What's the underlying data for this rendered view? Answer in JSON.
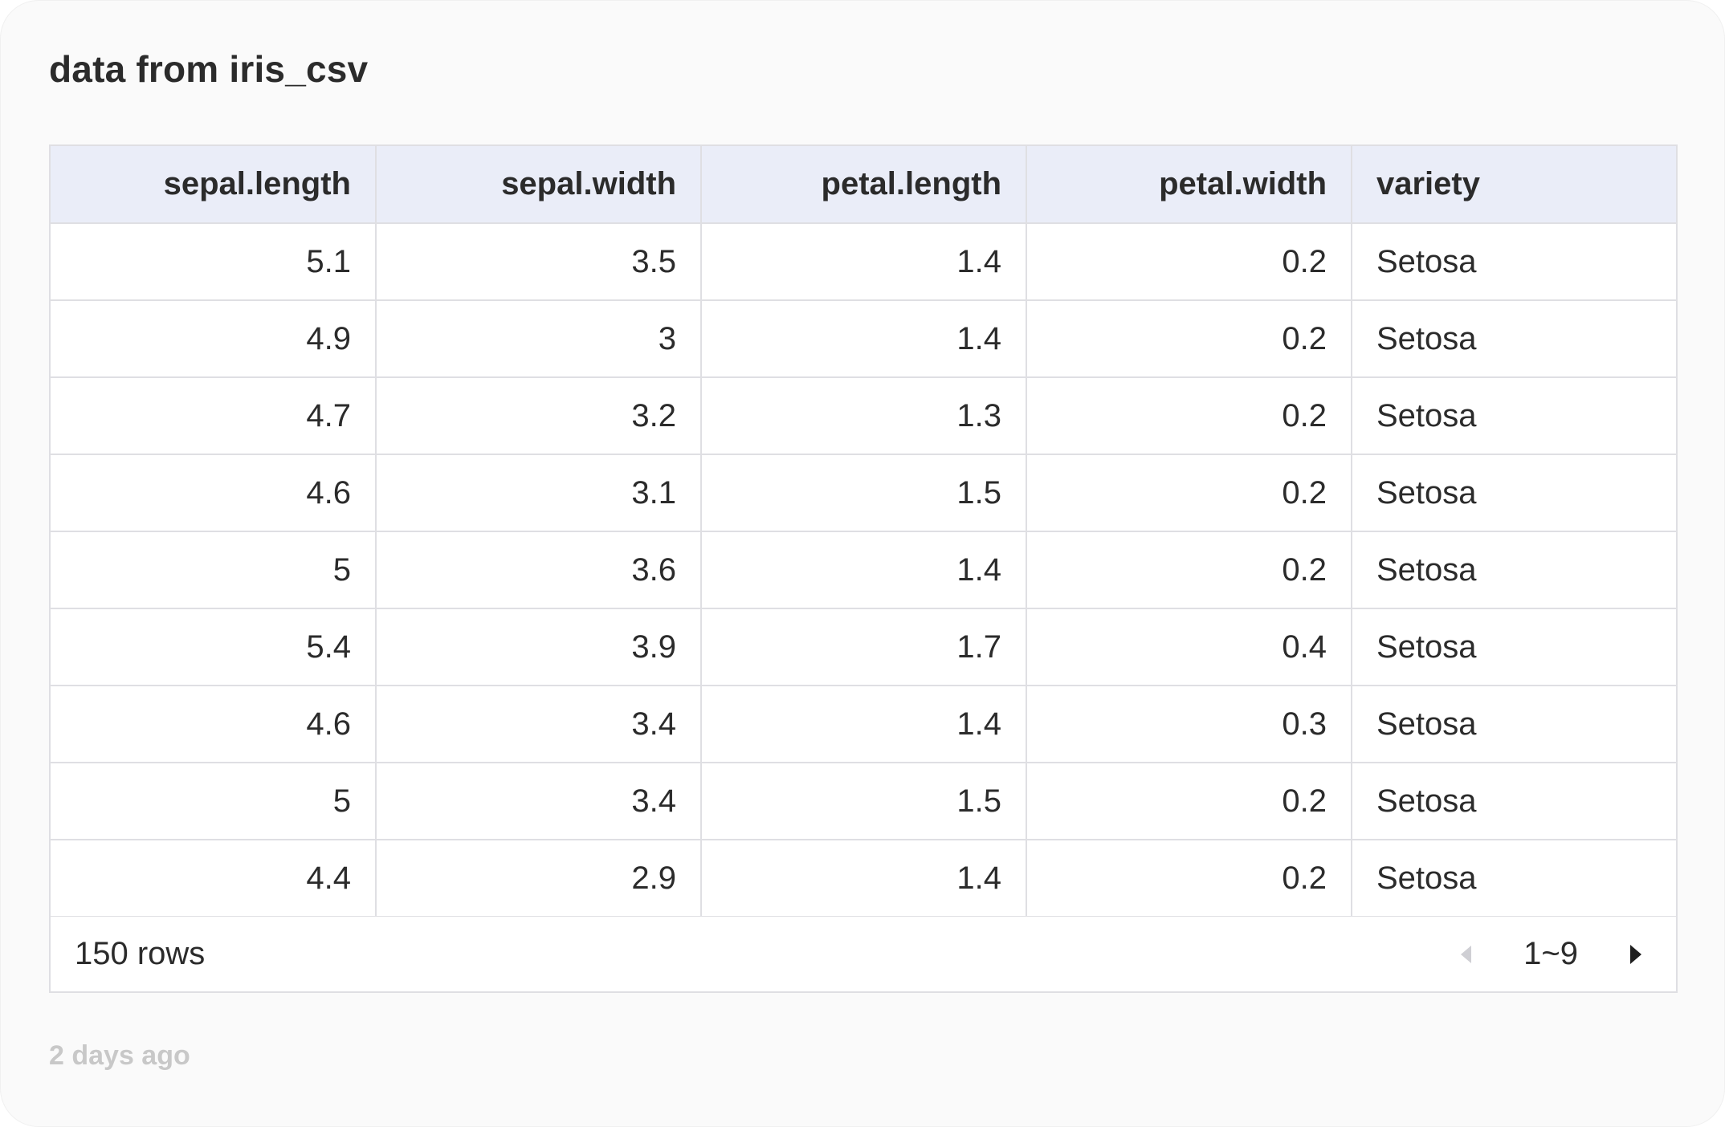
{
  "card": {
    "title": "data from iris_csv",
    "timestamp": "2 days ago"
  },
  "table": {
    "columns": [
      {
        "label": "sepal.length",
        "align": "right"
      },
      {
        "label": "sepal.width",
        "align": "right"
      },
      {
        "label": "petal.length",
        "align": "right"
      },
      {
        "label": "petal.width",
        "align": "right"
      },
      {
        "label": "variety",
        "align": "left"
      }
    ],
    "rows": [
      [
        "5.1",
        "3.5",
        "1.4",
        "0.2",
        "Setosa"
      ],
      [
        "4.9",
        "3",
        "1.4",
        "0.2",
        "Setosa"
      ],
      [
        "4.7",
        "3.2",
        "1.3",
        "0.2",
        "Setosa"
      ],
      [
        "4.6",
        "3.1",
        "1.5",
        "0.2",
        "Setosa"
      ],
      [
        "5",
        "3.6",
        "1.4",
        "0.2",
        "Setosa"
      ],
      [
        "5.4",
        "3.9",
        "1.7",
        "0.4",
        "Setosa"
      ],
      [
        "4.6",
        "3.4",
        "1.4",
        "0.3",
        "Setosa"
      ],
      [
        "5",
        "3.4",
        "1.5",
        "0.2",
        "Setosa"
      ],
      [
        "4.4",
        "2.9",
        "1.4",
        "0.2",
        "Setosa"
      ]
    ]
  },
  "footer": {
    "rows_count": "150 rows",
    "page_label": "1~9",
    "prev_icon": "caret-left-icon",
    "next_icon": "caret-right-icon"
  },
  "colors": {
    "header_bg": "#eaedf8",
    "border": "#dfdfe3",
    "text": "#2b2b2b",
    "muted": "#c8c8c8"
  }
}
